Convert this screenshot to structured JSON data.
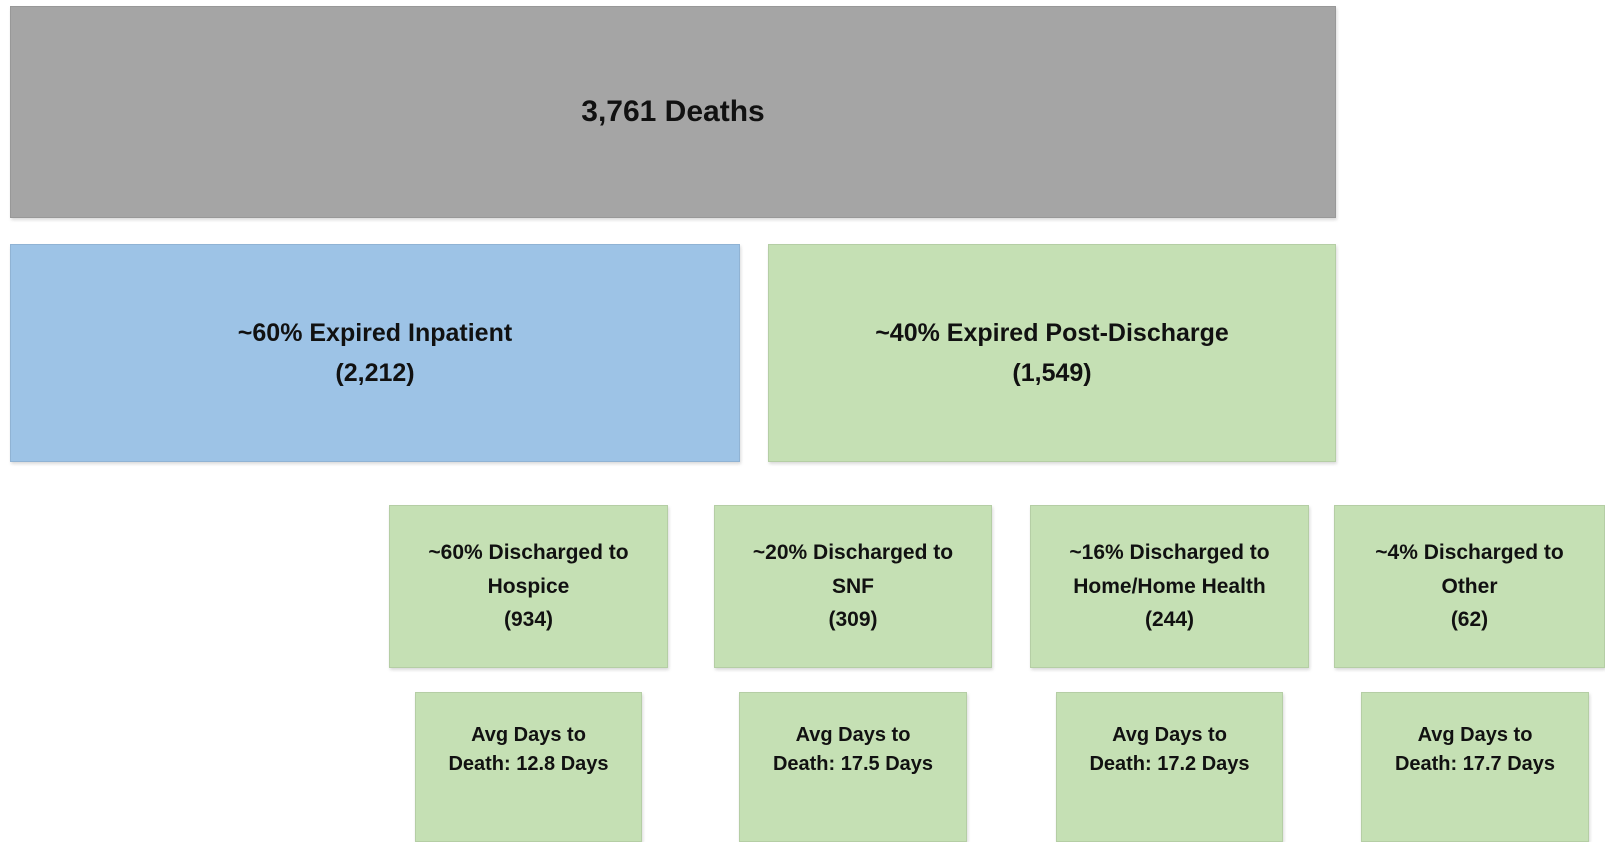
{
  "nodes": [
    {
      "lines": [
        "3,761 Deaths"
      ]
    },
    {
      "lines": [
        "~60% Expired Inpatient",
        "(2,212)"
      ]
    },
    {
      "lines": [
        "~40% Expired Post-Discharge",
        "(1,549)"
      ]
    },
    {
      "lines": [
        "~60% Discharged to",
        "Hospice",
        "(934)"
      ]
    },
    {
      "lines": [
        "~20% Discharged to",
        "SNF",
        "(309)"
      ]
    },
    {
      "lines": [
        "~16% Discharged to",
        "Home/Home Health",
        "(244)"
      ]
    },
    {
      "lines": [
        "~4% Discharged to",
        "Other",
        "(62)"
      ]
    },
    {
      "lines": [
        "Avg Days to",
        "Death: 12.8 Days"
      ]
    },
    {
      "lines": [
        "Avg Days to",
        "Death: 17.5 Days"
      ]
    },
    {
      "lines": [
        "Avg Days to",
        "Death: 17.2 Days"
      ]
    },
    {
      "lines": [
        "Avg Days to",
        "Death: 17.7 Days"
      ]
    }
  ]
}
